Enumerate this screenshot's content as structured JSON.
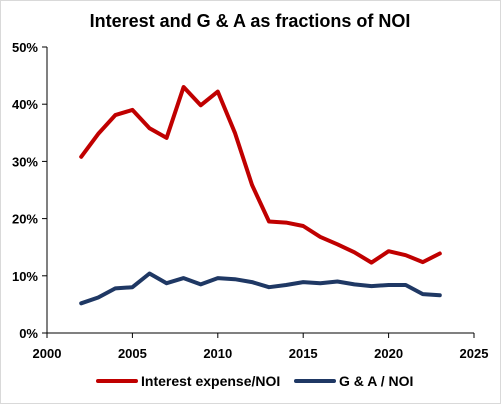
{
  "chart_data": {
    "type": "line",
    "title": "Interest and G & A as fractions of NOI",
    "xlabel": "",
    "ylabel": "",
    "xlim": [
      2000,
      2025
    ],
    "ylim": [
      0,
      0.5
    ],
    "x_ticks": [
      2000,
      2005,
      2010,
      2015,
      2020,
      2025
    ],
    "x_tick_labels": [
      "2000",
      "2005",
      "2010",
      "2015",
      "2020",
      "2025"
    ],
    "y_ticks": [
      0,
      0.1,
      0.2,
      0.3,
      0.4,
      0.5
    ],
    "y_tick_labels": [
      "0%",
      "10%",
      "20%",
      "30%",
      "40%",
      "50%"
    ],
    "grid": false,
    "legend_position": "bottom",
    "series": [
      {
        "name": "Interest expense/NOI",
        "color": "#c00000",
        "x": [
          2002,
          2003,
          2004,
          2005,
          2006,
          2007,
          2008,
          2009,
          2010,
          2011,
          2012,
          2013,
          2014,
          2015,
          2016,
          2017,
          2018,
          2019,
          2020,
          2021,
          2022,
          2023
        ],
        "y": [
          0.308,
          0.348,
          0.381,
          0.39,
          0.358,
          0.341,
          0.43,
          0.398,
          0.422,
          0.35,
          0.259,
          0.195,
          0.193,
          0.187,
          0.168,
          0.155,
          0.141,
          0.123,
          0.143,
          0.136,
          0.124,
          0.139
        ]
      },
      {
        "name": "G & A / NOI",
        "color": "#1f3864",
        "x": [
          2002,
          2003,
          2004,
          2005,
          2006,
          2007,
          2008,
          2009,
          2010,
          2011,
          2012,
          2013,
          2014,
          2015,
          2016,
          2017,
          2018,
          2019,
          2020,
          2021,
          2022,
          2023
        ],
        "y": [
          0.052,
          0.062,
          0.078,
          0.08,
          0.104,
          0.087,
          0.096,
          0.085,
          0.096,
          0.094,
          0.089,
          0.08,
          0.084,
          0.089,
          0.087,
          0.09,
          0.085,
          0.082,
          0.084,
          0.084,
          0.068,
          0.066
        ]
      }
    ]
  }
}
